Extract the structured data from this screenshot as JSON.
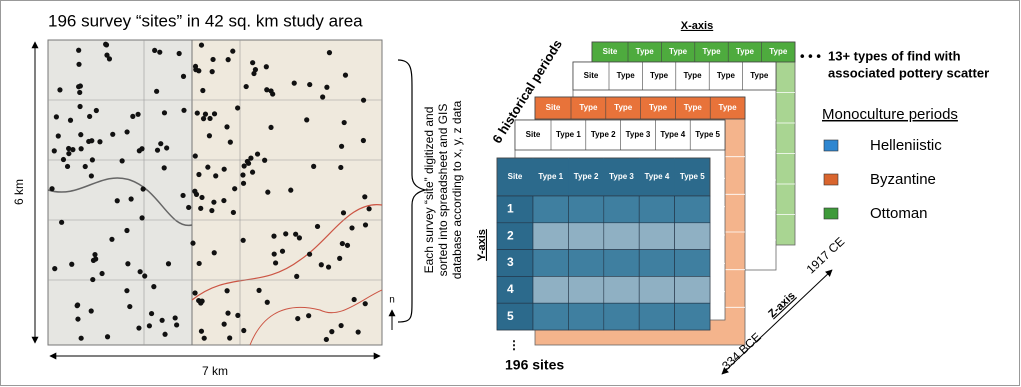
{
  "title": "196 survey “sites” in 42 sq. km study area",
  "map": {
    "height_label": "6 km",
    "width_label": "7 km",
    "north": "n"
  },
  "brace_text": [
    "Each survey “site” digitized and",
    "sorted into spreadsheet and GIS",
    "database according to x, y, z data"
  ],
  "cube": {
    "x_axis": "X-axis",
    "y_axis": "Y-axis",
    "z_axis": "Z-axis",
    "periods": "6 historical periods",
    "z_start": "334 BCE",
    "z_end": "1917 CE",
    "sites": "196 sites",
    "types": [
      "13+ types of find with",
      "associated pottery scatter"
    ],
    "layers": [
      {
        "header_color": "#4eab3e",
        "body_color": "#a9d592",
        "text_color": "#ffffff",
        "header": [
          "Site",
          "Type",
          "Type",
          "Type",
          "Type",
          "Type"
        ]
      },
      {
        "header_color": "#ffffff",
        "body_color": "#ffffff",
        "text_color": "#000000",
        "header": [
          "Site",
          "Type",
          "Type",
          "Type",
          "Type",
          "Type"
        ]
      },
      {
        "header_color": "#e8733a",
        "body_color": "#f4b48c",
        "text_color": "#ffffff",
        "header": [
          "Site",
          "Type",
          "Type",
          "Type",
          "Type",
          "Type"
        ]
      },
      {
        "header_color": "#ffffff",
        "body_color": "#ffffff",
        "text_color": "#000000",
        "header": [
          "Site",
          "Type 1",
          "Type 2",
          "Type 3",
          "Type 4",
          "Type 5"
        ]
      },
      {
        "header_color": "#2c6a8c",
        "body_color": "#3f7fa0",
        "text_color": "#ffffff",
        "header": [
          "Site",
          "Type 1",
          "Type 2",
          "Type 3",
          "Type 4",
          "Type 5"
        ]
      }
    ],
    "rows": [
      "1",
      "2",
      "3",
      "4",
      "5"
    ]
  },
  "legend": {
    "title": "Monoculture periods",
    "items": [
      {
        "label": "Helleniistic",
        "color": "#2e86d0"
      },
      {
        "label": "Byzantine",
        "color": "#d9652e"
      },
      {
        "label": "Ottoman",
        "color": "#3e9a3a"
      }
    ]
  }
}
